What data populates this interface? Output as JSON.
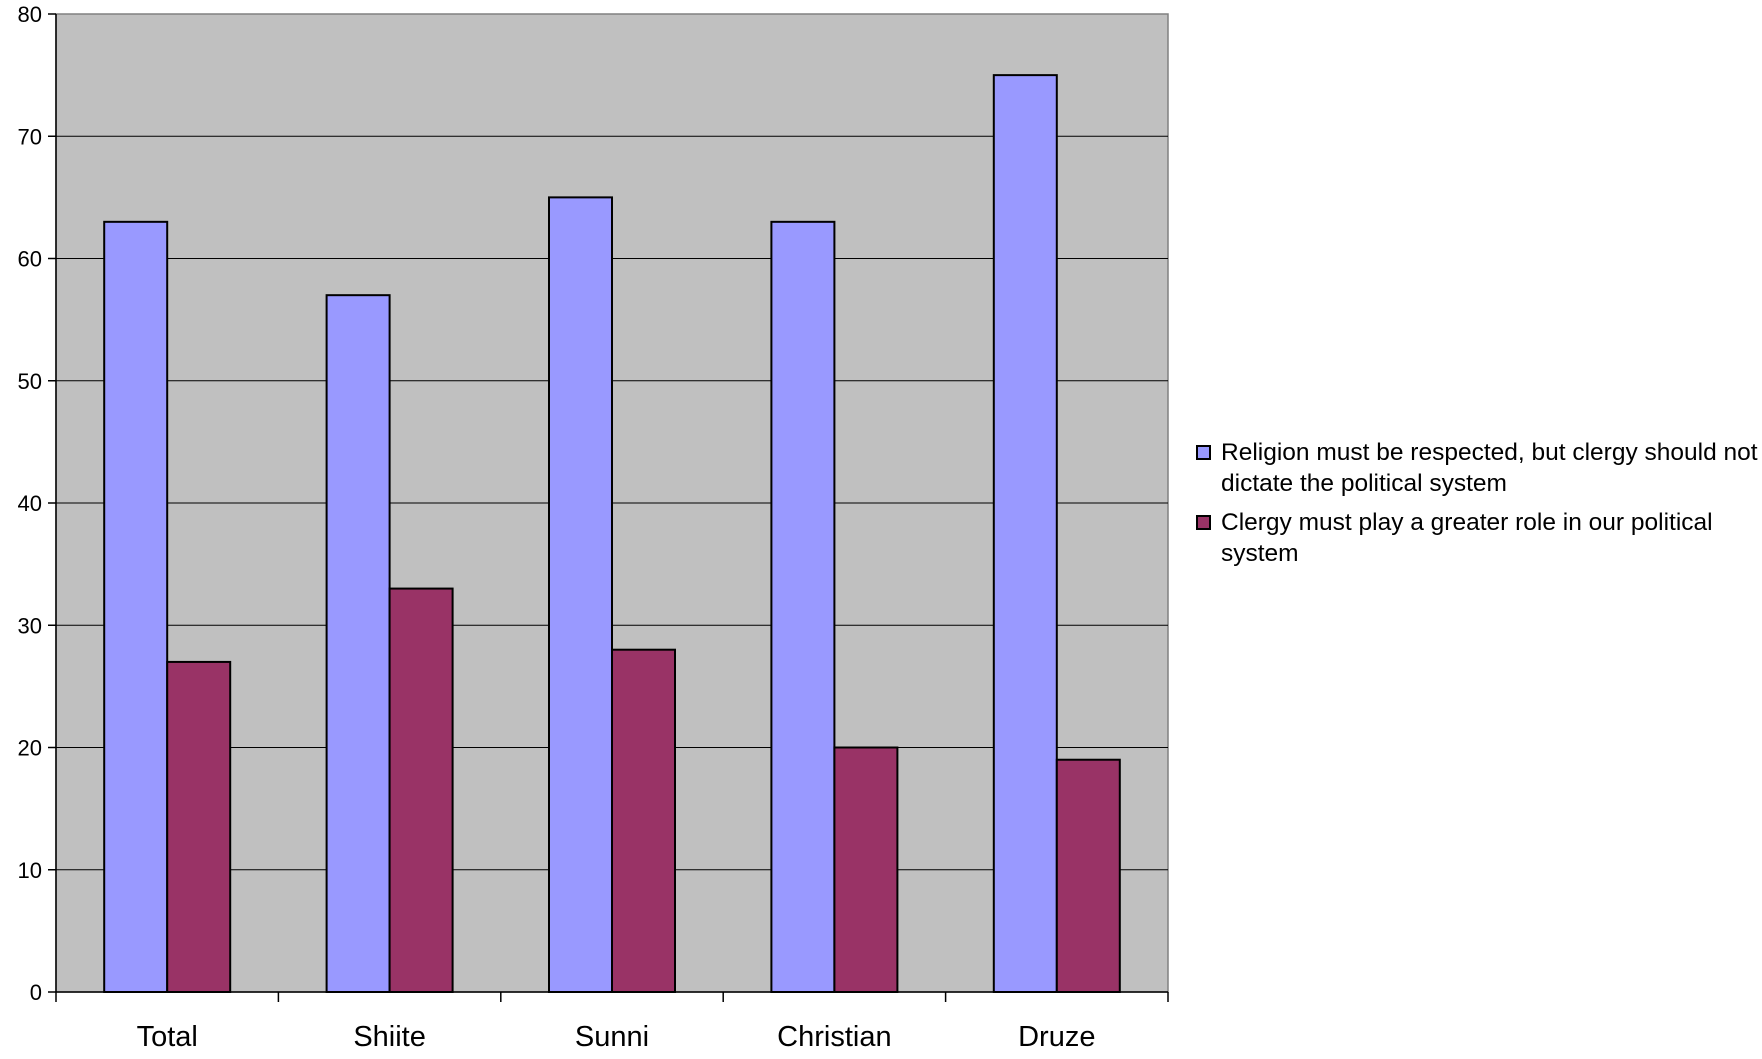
{
  "chart_data": {
    "type": "bar",
    "categories": [
      "Total",
      "Shiite",
      "Sunni",
      "Christian",
      "Druze"
    ],
    "series": [
      {
        "name": "Religion must be respected, but clergy should not dictate the political system",
        "values": [
          63,
          57,
          65,
          63,
          75
        ],
        "color": "#9999ff"
      },
      {
        "name": "Clergy must play a greater role in our political system",
        "values": [
          27,
          33,
          28,
          20,
          19
        ],
        "color": "#993366"
      }
    ],
    "ylim": [
      0,
      80
    ],
    "yticks": [
      "0",
      "10",
      "20",
      "30",
      "40",
      "50",
      "60",
      "70",
      "80"
    ],
    "grid": true,
    "plot_background": "#c0c0c0",
    "legend_position": "right"
  }
}
